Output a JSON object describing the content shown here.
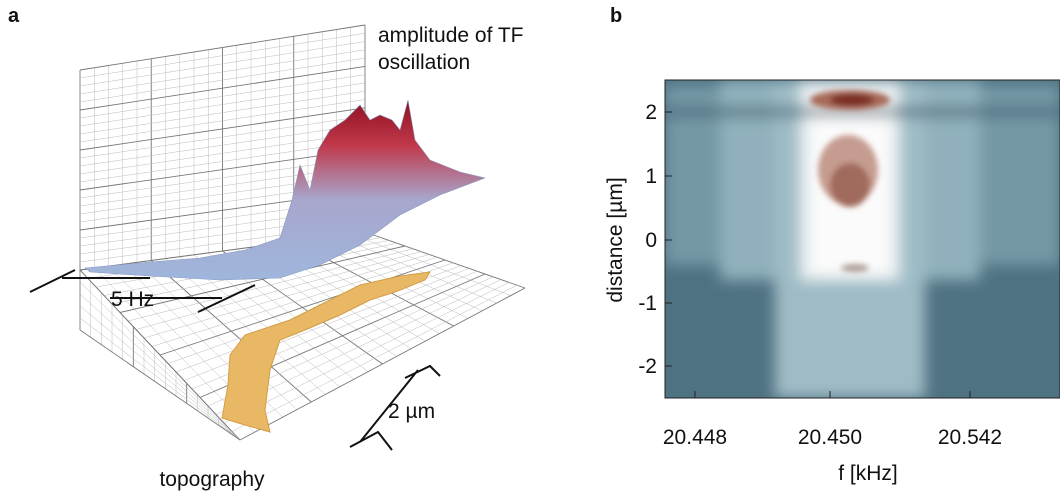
{
  "panel_a": {
    "label": "a",
    "surface_label": "amplitude of TF oscillation",
    "z_scale": "5 Hz",
    "length_scale": "2 µm",
    "floor_label": "topography"
  },
  "panel_b": {
    "label": "b",
    "y_label": "distance [µm]",
    "x_label": "f [kHz]",
    "yticks": [
      "2",
      "1",
      "0",
      "-1",
      "-2"
    ],
    "xticks": [
      "20.448",
      "20.450",
      "20.542"
    ]
  }
}
